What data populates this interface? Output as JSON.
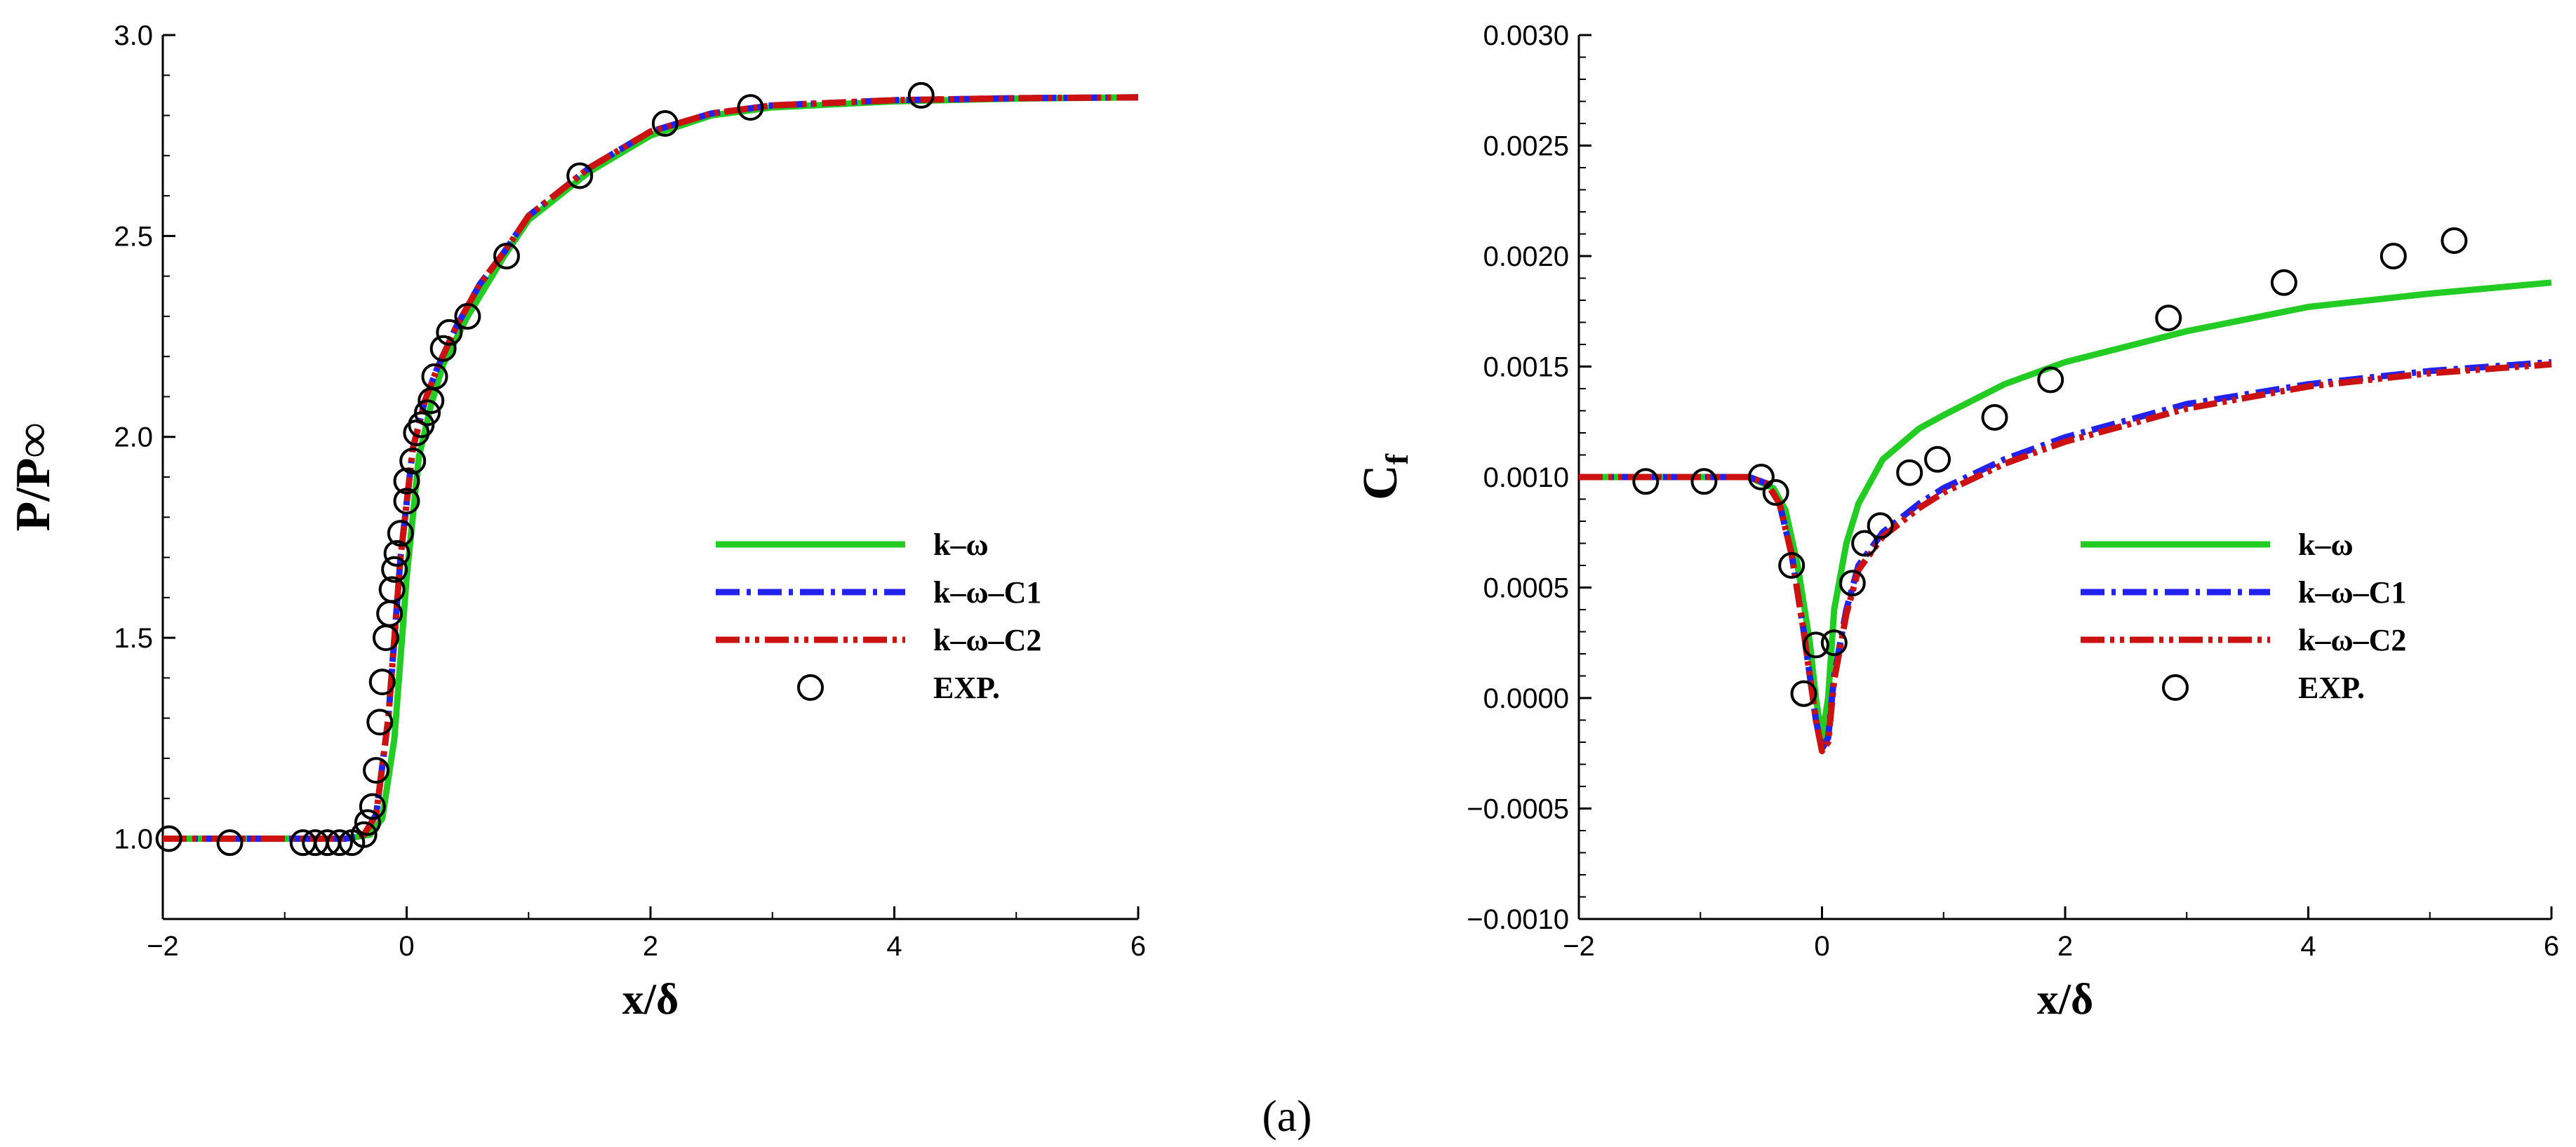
{
  "panel_label": "(a)",
  "colors": {
    "k_omega": "#22cc22",
    "k_omega_c1": "#2222ee",
    "k_omega_c2": "#cc1111",
    "exp": "#000000",
    "axis": "#000000"
  },
  "chart_data": [
    {
      "id": "pressure",
      "type": "line",
      "title": "",
      "xlabel": "x/δ",
      "ylabel": "P/P∞",
      "xlim": [
        -2,
        6
      ],
      "ylim": [
        0.8,
        3.0
      ],
      "xticks": [
        -2,
        0,
        2,
        4,
        6
      ],
      "yticks": [
        1.0,
        1.5,
        2.0,
        2.5,
        3.0
      ],
      "ytick_labels": [
        "1.0",
        "1.5",
        "2.0",
        "2.5",
        "3.0"
      ],
      "xtick_labels": [
        "−2",
        "0",
        "2",
        "4",
        "6"
      ],
      "legend_position": "center-right",
      "series": [
        {
          "name": "k–ω",
          "style": "solid",
          "color_key": "k_omega",
          "x": [
            -2.0,
            -0.5,
            -0.3,
            -0.2,
            -0.1,
            0.0,
            0.1,
            0.2,
            0.3,
            0.5,
            0.8,
            1.0,
            1.5,
            2.0,
            2.5,
            3.0,
            4.0,
            5.0,
            6.0
          ],
          "y": [
            1.0,
            1.0,
            1.01,
            1.05,
            1.25,
            1.65,
            1.95,
            2.08,
            2.18,
            2.3,
            2.45,
            2.54,
            2.66,
            2.75,
            2.8,
            2.82,
            2.835,
            2.842,
            2.845
          ]
        },
        {
          "name": "k–ω–C1",
          "style": "dashdot",
          "color_key": "k_omega_c1",
          "x": [
            -2.0,
            -0.5,
            -0.35,
            -0.25,
            -0.15,
            -0.05,
            0.05,
            0.15,
            0.25,
            0.4,
            0.6,
            0.8,
            1.0,
            1.5,
            2.0,
            2.5,
            3.0,
            4.0,
            5.0,
            6.0
          ],
          "y": [
            1.0,
            1.0,
            1.01,
            1.06,
            1.3,
            1.7,
            1.97,
            2.09,
            2.17,
            2.27,
            2.38,
            2.46,
            2.55,
            2.67,
            2.76,
            2.805,
            2.825,
            2.838,
            2.843,
            2.845
          ]
        },
        {
          "name": "k–ω–C2",
          "style": "dashdotdot",
          "color_key": "k_omega_c2",
          "x": [
            -2.0,
            -0.5,
            -0.35,
            -0.25,
            -0.15,
            -0.05,
            0.05,
            0.15,
            0.25,
            0.4,
            0.6,
            0.8,
            1.0,
            1.5,
            2.0,
            2.5,
            3.0,
            4.0,
            5.0,
            6.0
          ],
          "y": [
            1.0,
            1.0,
            1.01,
            1.06,
            1.3,
            1.7,
            1.97,
            2.09,
            2.17,
            2.27,
            2.38,
            2.46,
            2.55,
            2.67,
            2.76,
            2.805,
            2.825,
            2.838,
            2.843,
            2.845
          ]
        },
        {
          "name": "EXP.",
          "style": "markers",
          "color_key": "exp",
          "x": [
            -1.95,
            -1.45,
            -0.85,
            -0.75,
            -0.65,
            -0.55,
            -0.45,
            -0.35,
            -0.32,
            -0.28,
            -0.25,
            -0.22,
            -0.2,
            -0.17,
            -0.14,
            -0.12,
            -0.1,
            -0.08,
            -0.05,
            0.0,
            0.0,
            0.05,
            0.08,
            0.12,
            0.17,
            0.2,
            0.23,
            0.3,
            0.35,
            0.5,
            0.82,
            1.42,
            2.12,
            2.82,
            4.22
          ],
          "y": [
            1.0,
            0.99,
            0.99,
            0.99,
            0.99,
            0.99,
            0.99,
            1.01,
            1.04,
            1.08,
            1.17,
            1.29,
            1.39,
            1.5,
            1.56,
            1.62,
            1.67,
            1.71,
            1.76,
            1.84,
            1.89,
            1.94,
            2.01,
            2.03,
            2.06,
            2.09,
            2.15,
            2.22,
            2.26,
            2.3,
            2.45,
            2.65,
            2.78,
            2.82,
            2.85
          ]
        }
      ]
    },
    {
      "id": "skin_friction",
      "type": "line",
      "title": "",
      "xlabel": "x/δ",
      "ylabel": "Cf",
      "ylabel_main": "C",
      "ylabel_sub": "f",
      "xlim": [
        -2,
        6
      ],
      "ylim": [
        -0.001,
        0.003
      ],
      "xticks": [
        -2,
        0,
        2,
        4,
        6
      ],
      "yticks": [
        -0.001,
        -0.0005,
        0.0,
        0.0005,
        0.001,
        0.0015,
        0.002,
        0.0025,
        0.003
      ],
      "ytick_labels": [
        "−0.0010",
        "−0.0005",
        "0.0000",
        "0.0005",
        "0.0010",
        "0.0015",
        "0.0020",
        "0.0025",
        "0.0030"
      ],
      "xtick_labels": [
        "−2",
        "0",
        "2",
        "4",
        "6"
      ],
      "legend_position": "center-right",
      "series": [
        {
          "name": "k–ω",
          "style": "solid",
          "color_key": "k_omega",
          "x": [
            -2.0,
            -0.6,
            -0.4,
            -0.3,
            -0.2,
            -0.1,
            -0.05,
            0.0,
            0.05,
            0.1,
            0.2,
            0.3,
            0.5,
            0.8,
            1.0,
            1.5,
            2.0,
            3.0,
            4.0,
            5.0,
            6.0
          ],
          "y": [
            0.001,
            0.001,
            0.00095,
            0.00085,
            0.0006,
            0.00025,
            0.0,
            -0.00018,
            0.0,
            0.0004,
            0.0007,
            0.00088,
            0.00108,
            0.00122,
            0.00128,
            0.00142,
            0.00152,
            0.00166,
            0.00177,
            0.00183,
            0.00188
          ]
        },
        {
          "name": "k–ω–C1",
          "style": "dashdot",
          "color_key": "k_omega_c1",
          "x": [
            -2.0,
            -0.6,
            -0.45,
            -0.35,
            -0.25,
            -0.15,
            -0.05,
            0.0,
            0.05,
            0.1,
            0.2,
            0.3,
            0.5,
            0.8,
            1.0,
            1.5,
            2.0,
            3.0,
            4.0,
            5.0,
            6.0
          ],
          "y": [
            0.001,
            0.001,
            0.00097,
            0.00088,
            0.00065,
            0.0003,
            -0.0001,
            -0.00023,
            -0.00018,
            0.0001,
            0.0004,
            0.0006,
            0.00075,
            0.00088,
            0.00095,
            0.00108,
            0.00118,
            0.00133,
            0.00142,
            0.00148,
            0.00152
          ]
        },
        {
          "name": "k–ω–C2",
          "style": "dashdotdot",
          "color_key": "k_omega_c2",
          "x": [
            -2.0,
            -0.6,
            -0.45,
            -0.35,
            -0.25,
            -0.15,
            -0.05,
            0.0,
            0.05,
            0.1,
            0.2,
            0.3,
            0.5,
            0.8,
            1.0,
            1.5,
            2.0,
            3.0,
            4.0,
            5.0,
            6.0
          ],
          "y": [
            0.001,
            0.001,
            0.00097,
            0.00088,
            0.00065,
            0.0003,
            -0.0001,
            -0.00024,
            -0.0002,
            8e-05,
            0.00038,
            0.00058,
            0.00073,
            0.00086,
            0.00093,
            0.00106,
            0.00116,
            0.00131,
            0.00141,
            0.00147,
            0.00151
          ]
        },
        {
          "name": "EXP.",
          "style": "markers",
          "color_key": "exp",
          "x": [
            -1.45,
            -0.97,
            -0.5,
            -0.38,
            -0.25,
            -0.15,
            -0.05,
            0.1,
            0.25,
            0.35,
            0.48,
            0.72,
            0.95,
            1.42,
            1.88,
            2.85,
            3.8,
            4.7,
            5.2
          ],
          "y": [
            0.00098,
            0.00098,
            0.001,
            0.00093,
            0.0006,
            2e-05,
            0.00024,
            0.00025,
            0.00052,
            0.0007,
            0.00078,
            0.00102,
            0.00108,
            0.00127,
            0.00144,
            0.00172,
            0.00188,
            0.002,
            0.00207
          ]
        }
      ]
    }
  ]
}
